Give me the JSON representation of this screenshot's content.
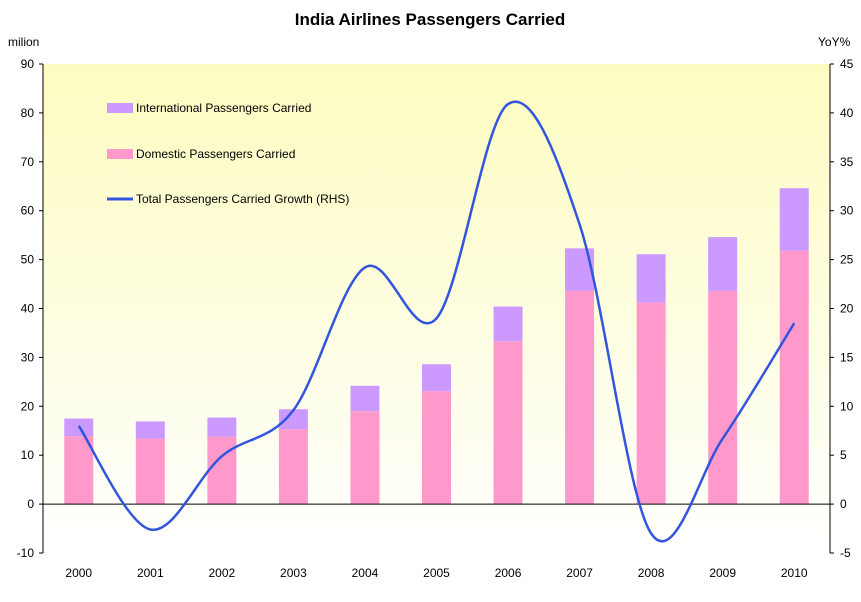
{
  "chart_data": {
    "type": "bar",
    "title": "India Airlines Passengers Carried",
    "y_unit_left": "milion",
    "y_unit_right": "YoY%",
    "categories": [
      "2000",
      "2001",
      "2002",
      "2003",
      "2004",
      "2005",
      "2006",
      "2007",
      "2008",
      "2009",
      "2010"
    ],
    "ylim_left": [
      -10,
      90
    ],
    "yticks_left": [
      -10,
      0,
      10,
      20,
      30,
      40,
      50,
      60,
      70,
      80,
      90
    ],
    "ylim_right": [
      -5,
      45
    ],
    "yticks_right": [
      -5,
      0,
      5,
      10,
      15,
      20,
      25,
      30,
      35,
      40,
      45
    ],
    "stacked": true,
    "series": [
      {
        "name": "Domestic Passengers Carried",
        "kind": "bar",
        "axis": "left",
        "color": "#ff99cc",
        "values": [
          13.9,
          13.4,
          13.8,
          15.3,
          19.0,
          23.1,
          33.3,
          43.6,
          41.2,
          43.6,
          51.8
        ]
      },
      {
        "name": "International Passengers Carried",
        "kind": "bar",
        "axis": "left",
        "color": "#cc99ff",
        "values": [
          3.6,
          3.5,
          3.9,
          4.1,
          5.2,
          5.5,
          7.1,
          8.7,
          9.9,
          11.0,
          12.8
        ]
      },
      {
        "name": "Total Passengers Carried Growth (RHS)",
        "kind": "line",
        "axis": "right",
        "color": "#3355dd",
        "smooth": true,
        "values": [
          8.0,
          -2.6,
          4.9,
          9.6,
          24.2,
          19.0,
          40.9,
          28.6,
          -3.0,
          6.7,
          18.5
        ]
      }
    ],
    "legend_position": "top-left",
    "grid": false,
    "plot_background": "gradient light-yellow"
  }
}
